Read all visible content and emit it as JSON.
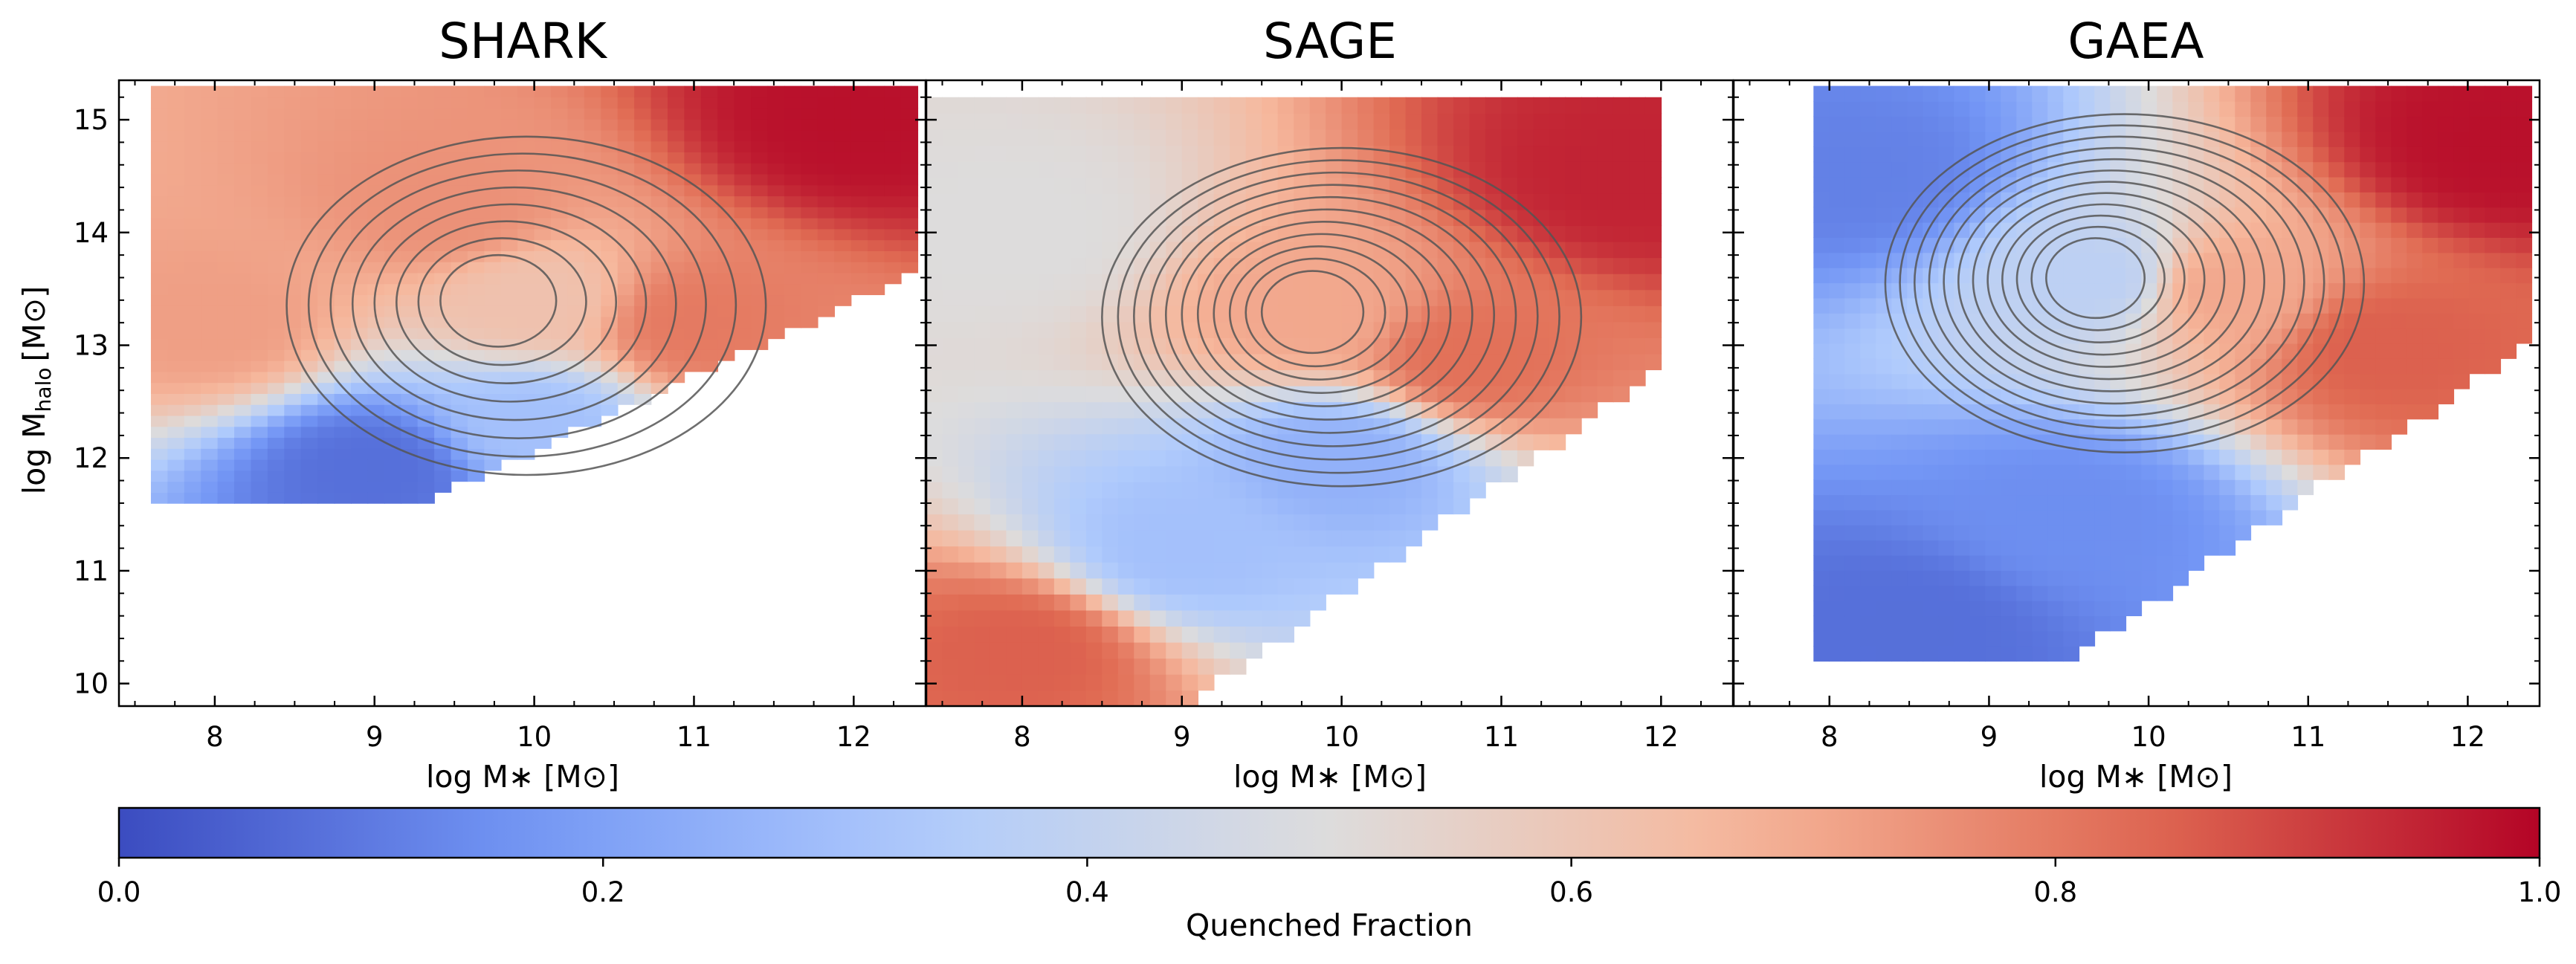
{
  "chart_data": {
    "type": "heatmap",
    "shared": {
      "xlabel": "log M∗ [M⊙]",
      "ylabel_main": "log M",
      "ylabel_sub": "halo",
      "ylabel_unit": "[M⊙]",
      "xlim": [
        7.4,
        12.45
      ],
      "ylim": [
        9.8,
        15.35
      ],
      "xticks": [
        8,
        9,
        10,
        11,
        12
      ],
      "yticks": [
        10,
        11,
        12,
        13,
        14,
        15
      ],
      "colorbar": {
        "label": "Quenched Fraction",
        "range": [
          0.0,
          1.0
        ],
        "ticks": [
          "0.0",
          "0.2",
          "0.4",
          "0.6",
          "0.8",
          "1.0"
        ],
        "colormap": "coolwarm",
        "stops": [
          "#3b4cc0",
          "#7396f5",
          "#b0cbfc",
          "#dddcdc",
          "#f6b79c",
          "#e06b53",
          "#b40426"
        ]
      },
      "contour_color": "#555555"
    },
    "panels": [
      {
        "title": "SHARK",
        "x_range": [
          7.6,
          12.4
        ],
        "y_range": [
          11.6,
          15.3
        ],
        "peak": [
          9.75,
          13.4
        ],
        "contour_levels": 8,
        "trend": [
          {
            "x": 8.0,
            "y": 13.2,
            "q": 0.72
          },
          {
            "x": 9.5,
            "y": 14.2,
            "q": 0.75
          },
          {
            "x": 10.0,
            "y": 13.4,
            "q": 0.62
          },
          {
            "x": 11.0,
            "y": 13.2,
            "q": 0.8
          },
          {
            "x": 12.0,
            "y": 15.0,
            "q": 0.98
          },
          {
            "x": 10.0,
            "y": 12.3,
            "q": 0.3
          },
          {
            "x": 9.0,
            "y": 11.9,
            "q": 0.08
          }
        ]
      },
      {
        "title": "SAGE",
        "x_range": [
          7.4,
          12.0
        ],
        "y_range": [
          9.8,
          15.2
        ],
        "peak": [
          9.8,
          13.3
        ],
        "contour_levels": 11,
        "trend": [
          {
            "x": 8.0,
            "y": 14.0,
            "q": 0.5
          },
          {
            "x": 9.8,
            "y": 13.3,
            "q": 0.7
          },
          {
            "x": 10.8,
            "y": 12.9,
            "q": 0.82
          },
          {
            "x": 11.8,
            "y": 14.5,
            "q": 0.95
          },
          {
            "x": 10.0,
            "y": 12.0,
            "q": 0.25
          },
          {
            "x": 9.0,
            "y": 11.2,
            "q": 0.3
          },
          {
            "x": 8.0,
            "y": 10.3,
            "q": 0.85
          }
        ]
      },
      {
        "title": "GAEA",
        "x_range": [
          7.9,
          12.4
        ],
        "y_range": [
          10.2,
          15.3
        ],
        "peak": [
          9.65,
          13.6
        ],
        "contour_levels": 12,
        "trend": [
          {
            "x": 8.2,
            "y": 14.5,
            "q": 0.12
          },
          {
            "x": 9.65,
            "y": 13.6,
            "q": 0.38
          },
          {
            "x": 10.5,
            "y": 13.5,
            "q": 0.7
          },
          {
            "x": 11.5,
            "y": 13.0,
            "q": 0.85
          },
          {
            "x": 12.2,
            "y": 14.8,
            "q": 0.98
          },
          {
            "x": 9.5,
            "y": 11.5,
            "q": 0.15
          },
          {
            "x": 8.5,
            "y": 10.5,
            "q": 0.08
          }
        ]
      }
    ]
  }
}
